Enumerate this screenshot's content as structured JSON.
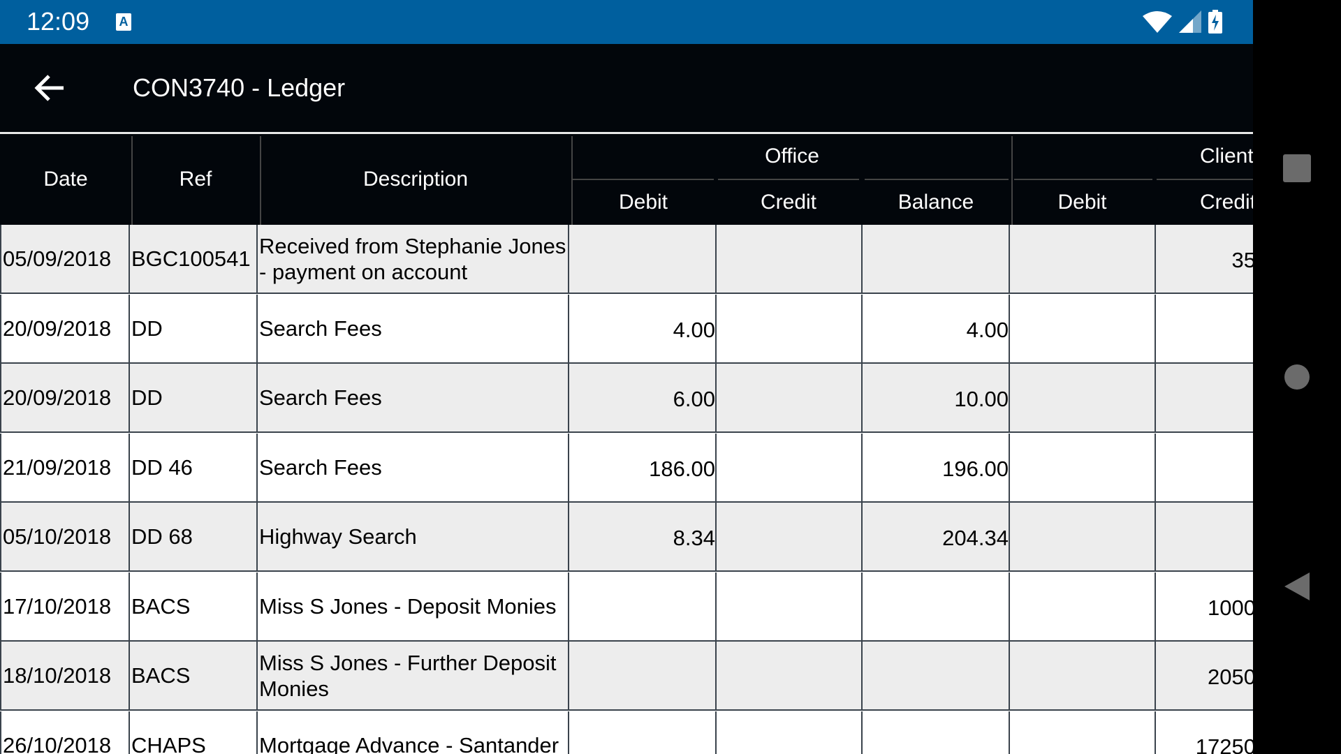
{
  "status_bar": {
    "time": "12:09",
    "notification_icon": "a-icon",
    "icons": [
      "wifi-icon",
      "signal-icon",
      "battery-charging-icon"
    ]
  },
  "toolbar": {
    "title": "CON3740 - Ledger",
    "back_icon": "arrow-left-icon"
  },
  "table": {
    "headers": {
      "date": "Date",
      "ref": "Ref",
      "description": "Description",
      "office": "Office",
      "client": "Client",
      "office_debit": "Debit",
      "office_credit": "Credit",
      "office_balance": "Balance",
      "client_debit": "Debit",
      "client_credit": "Credit"
    },
    "rows": [
      {
        "date": "05/09/2018",
        "ref": "BGC100541",
        "description": "Received from Stephanie Jones - payment on account",
        "office_debit": "",
        "office_credit": "",
        "office_balance": "",
        "client_debit": "",
        "client_credit": "35"
      },
      {
        "date": "20/09/2018",
        "ref": "DD",
        "description": "Search Fees",
        "office_debit": "4.00",
        "office_credit": "",
        "office_balance": "4.00",
        "client_debit": "",
        "client_credit": ""
      },
      {
        "date": "20/09/2018",
        "ref": "DD",
        "description": "Search Fees",
        "office_debit": "6.00",
        "office_credit": "",
        "office_balance": "10.00",
        "client_debit": "",
        "client_credit": ""
      },
      {
        "date": "21/09/2018",
        "ref": "DD 46",
        "description": "Search Fees",
        "office_debit": "186.00",
        "office_credit": "",
        "office_balance": "196.00",
        "client_debit": "",
        "client_credit": ""
      },
      {
        "date": "05/10/2018",
        "ref": "DD 68",
        "description": "Highway Search",
        "office_debit": "8.34",
        "office_credit": "",
        "office_balance": "204.34",
        "client_debit": "",
        "client_credit": ""
      },
      {
        "date": "17/10/2018",
        "ref": "BACS",
        "description": "Miss S Jones - Deposit Monies",
        "office_debit": "",
        "office_credit": "",
        "office_balance": "",
        "client_debit": "",
        "client_credit": "1000"
      },
      {
        "date": "18/10/2018",
        "ref": "BACS",
        "description": "Miss S Jones - Further Deposit Monies",
        "office_debit": "",
        "office_credit": "",
        "office_balance": "",
        "client_debit": "",
        "client_credit": "2050"
      },
      {
        "date": "26/10/2018",
        "ref": "CHAPS",
        "description": "Mortgage Advance - Santander",
        "office_debit": "",
        "office_credit": "",
        "office_balance": "",
        "client_debit": "",
        "client_credit": "17250"
      }
    ]
  },
  "nav_bar": {
    "icons": [
      "recents-square-icon",
      "home-circle-icon",
      "back-triangle-icon"
    ]
  },
  "colors": {
    "status_bar": "#005f9e",
    "toolbar": "#02060b",
    "row_alt": "#ededed",
    "grid": "#3a434c"
  }
}
